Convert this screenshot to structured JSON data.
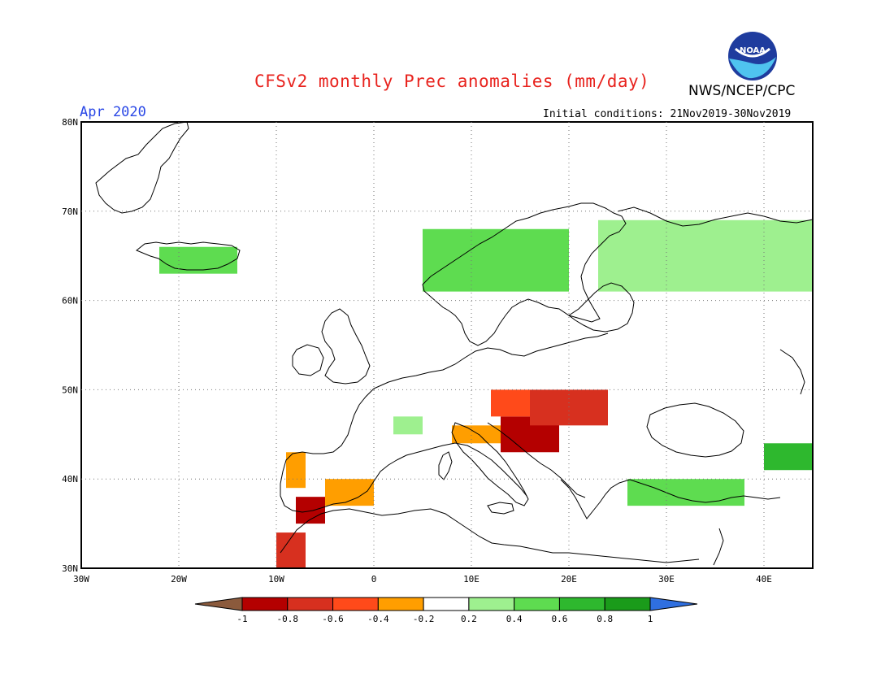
{
  "header": {
    "title": "CFSv2 monthly Prec anomalies (mm/day)",
    "agency": "NWS/NCEP/CPC",
    "month": "Apr 2020",
    "initial_conditions": "Initial conditions: 21Nov2019-30Nov2019",
    "logo_text": "NOAA"
  },
  "chart_data": {
    "type": "heatmap",
    "title": "CFSv2 monthly Prec anomalies (mm/day)",
    "subtitle": "Apr 2020",
    "units": "mm/day",
    "lon_range": [
      -30,
      45
    ],
    "lat_range": [
      30,
      80
    ],
    "x_ticks": [
      "30W",
      "20W",
      "10W",
      "0",
      "10E",
      "20E",
      "30E",
      "40E"
    ],
    "y_ticks": [
      "30N",
      "40N",
      "50N",
      "60N",
      "70N",
      "80N"
    ],
    "grid": true,
    "colorbar": {
      "ticks": [
        "-1",
        "-0.8",
        "-0.6",
        "-0.4",
        "-0.2",
        "0.2",
        "0.4",
        "0.6",
        "0.8",
        "1"
      ],
      "colors": [
        "#8b5a3c",
        "#b40000",
        "#d7301f",
        "#ff4a1a",
        "#ff9e00",
        "#ffffff",
        "#9ef08f",
        "#5edc50",
        "#2eb82e",
        "#1a9b1a",
        "#2f6fe0"
      ]
    },
    "anomaly_regions": [
      {
        "name": "Western Balkans / Croatia",
        "lon_range": [
          13,
          19
        ],
        "lat_range": [
          43,
          47
        ],
        "anomaly": -0.8
      },
      {
        "name": "Hungary / Slovakia",
        "lon_range": [
          16,
          24
        ],
        "lat_range": [
          46,
          50
        ],
        "anomaly": -0.6
      },
      {
        "name": "Austria / Czechia",
        "lon_range": [
          12,
          16
        ],
        "lat_range": [
          47,
          50
        ],
        "anomaly": -0.5
      },
      {
        "name": "Northern Italy",
        "lon_range": [
          8,
          13
        ],
        "lat_range": [
          44,
          46
        ],
        "anomaly": -0.3
      },
      {
        "name": "Southern Iberia / Gibraltar",
        "lon_range": [
          -8,
          -5
        ],
        "lat_range": [
          35,
          38
        ],
        "anomaly": -0.8
      },
      {
        "name": "Morocco coast",
        "lon_range": [
          -10,
          -7
        ],
        "lat_range": [
          30,
          34
        ],
        "anomaly": -0.6
      },
      {
        "name": "Eastern Spain",
        "lon_range": [
          -5,
          0
        ],
        "lat_range": [
          37,
          40
        ],
        "anomaly": -0.3
      },
      {
        "name": "Portugal",
        "lon_range": [
          -9,
          -7
        ],
        "lat_range": [
          39,
          43
        ],
        "anomaly": -0.3
      },
      {
        "name": "Northwest Russia / Finland",
        "lon_range": [
          23,
          45
        ],
        "lat_range": [
          61,
          69
        ],
        "anomaly": 0.3
      },
      {
        "name": "Norway coast",
        "lon_range": [
          5,
          20
        ],
        "lat_range": [
          61,
          68
        ],
        "anomaly": 0.4
      },
      {
        "name": "Iceland",
        "lon_range": [
          -22,
          -14
        ],
        "lat_range": [
          63,
          66
        ],
        "anomaly": 0.4
      },
      {
        "name": "Turkey",
        "lon_range": [
          26,
          38
        ],
        "lat_range": [
          37,
          40
        ],
        "anomaly": 0.4
      },
      {
        "name": "Caucasus",
        "lon_range": [
          40,
          45
        ],
        "lat_range": [
          41,
          44
        ],
        "anomaly": 0.7
      },
      {
        "name": "France",
        "lon_range": [
          2,
          5
        ],
        "lat_range": [
          45,
          47
        ],
        "anomaly": 0.3
      }
    ]
  }
}
